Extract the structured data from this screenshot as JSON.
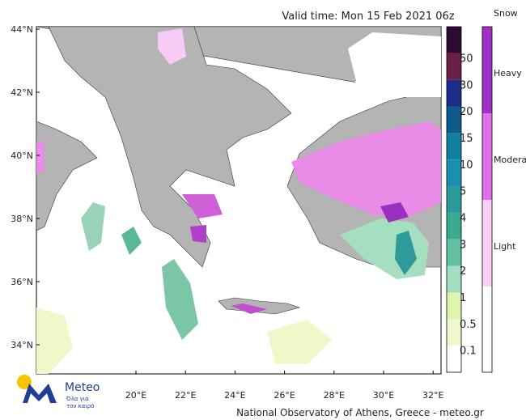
{
  "header": {
    "title": "Valid time: Mon 15 Feb 2021 06z"
  },
  "map": {
    "lat_labels": [
      "44°N",
      "42°N",
      "40°N",
      "38°N",
      "36°N",
      "34°N"
    ],
    "lon_labels": [
      "20°E",
      "22°E",
      "24°E",
      "26°E",
      "28°E",
      "30°E",
      "32°E"
    ]
  },
  "rain_scale": {
    "labels": [
      "50",
      "30",
      "20",
      "15",
      "10",
      "5",
      "4",
      "3",
      "2",
      "1",
      "0.5",
      "0.1"
    ]
  },
  "snow_scale": {
    "title": "Snow",
    "labels": [
      "Heavy",
      "Moderate",
      "Light"
    ]
  },
  "logo": {
    "name": "Meteo",
    "tagline": [
      "Όλα για",
      "τον καιρό"
    ]
  },
  "footer": {
    "credit": "National Observatory of Athens, Greece - meteo.gr"
  }
}
